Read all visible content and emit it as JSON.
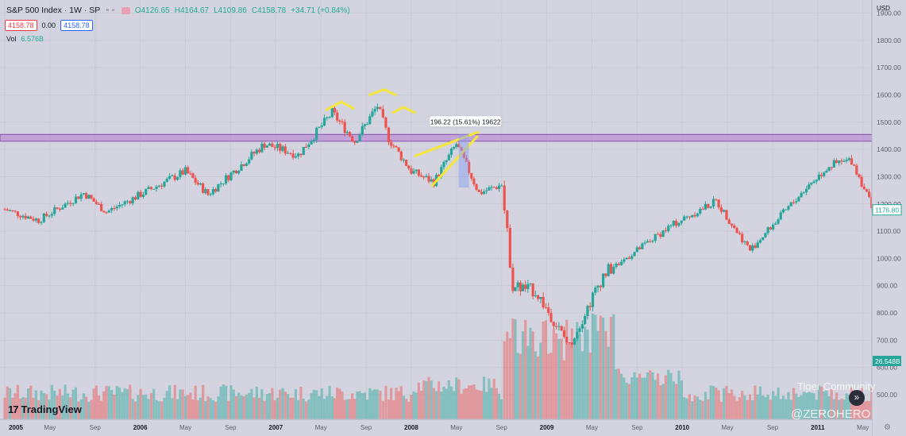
{
  "header": {
    "symbol": "S&P 500 Index · 1W · SP",
    "dots": "∘∘",
    "open": "O4126.65",
    "high": "H4164.67",
    "low": "L4109.86",
    "close": "C4158.78",
    "change": "+34.71 (+0.84%)",
    "bid": "4158.78",
    "spread": "0.00",
    "ask": "4158.78",
    "vol_label": "Vol",
    "vol_value": "6.576B"
  },
  "axis": {
    "currency": "USD",
    "price_labels": [
      "1900.00",
      "1800.00",
      "1700.00",
      "1600.00",
      "1500.00",
      "1400.00",
      "1300.00",
      "1200.00",
      "1100.00",
      "1000.00",
      "900.00",
      "800.00",
      "700.00",
      "600.00",
      "500.00"
    ],
    "last_price": "1176.80",
    "volume_label": "26.548B",
    "time_labels": [
      "2005",
      "May",
      "Sep",
      "2006",
      "May",
      "Sep",
      "2007",
      "May",
      "Sep",
      "2008",
      "May",
      "Sep",
      "2009",
      "May",
      "Sep",
      "2010",
      "May",
      "Sep",
      "2011",
      "May"
    ]
  },
  "annotation": {
    "measure_label": "196.22 (15.61%) 19622"
  },
  "branding": {
    "logo_mark": "17",
    "logo_text": "TradingView",
    "watermark_1": "Tiger Community",
    "watermark_2": "@ZEROHERO",
    "nav_icon": "»",
    "settings_icon": "⚙"
  },
  "colors": {
    "background": "#d3d4df",
    "up": "#26a69a",
    "down": "#ef5350",
    "zone": "#b882d4",
    "trendline": "#f5e63a",
    "measure": "#8c9ff0"
  },
  "chart_data": {
    "type": "candlestick",
    "title": "S&P 500 Index · 1W · SP",
    "ylim": [
      440,
      1940
    ],
    "x_range": [
      "2005-01",
      "2011-06"
    ],
    "resistance_zone": [
      1430,
      1455
    ],
    "key_points": [
      {
        "date": "2005-01",
        "close": 1180
      },
      {
        "date": "2005-04",
        "close": 1140
      },
      {
        "date": "2005-08",
        "close": 1240
      },
      {
        "date": "2005-10",
        "close": 1170
      },
      {
        "date": "2006-05",
        "close": 1320
      },
      {
        "date": "2006-07",
        "close": 1235
      },
      {
        "date": "2006-12",
        "close": 1420
      },
      {
        "date": "2007-03",
        "close": 1380
      },
      {
        "date": "2007-06",
        "close": 1535
      },
      {
        "date": "2007-08",
        "close": 1430
      },
      {
        "date": "2007-10",
        "close": 1560
      },
      {
        "date": "2007-11",
        "close": 1440
      },
      {
        "date": "2008-01",
        "close": 1320
      },
      {
        "date": "2008-03",
        "close": 1280
      },
      {
        "date": "2008-05",
        "close": 1420
      },
      {
        "date": "2008-07",
        "close": 1240
      },
      {
        "date": "2008-09",
        "close": 1270
      },
      {
        "date": "2008-10",
        "close": 900
      },
      {
        "date": "2008-12",
        "close": 880
      },
      {
        "date": "2009-03",
        "close": 680
      },
      {
        "date": "2009-06",
        "close": 940
      },
      {
        "date": "2009-12",
        "close": 1120
      },
      {
        "date": "2010-04",
        "close": 1210
      },
      {
        "date": "2010-07",
        "close": 1030
      },
      {
        "date": "2010-12",
        "close": 1260
      },
      {
        "date": "2011-02",
        "close": 1340
      },
      {
        "date": "2011-04",
        "close": 1360
      },
      {
        "date": "2011-06",
        "close": 1176.8
      }
    ]
  }
}
